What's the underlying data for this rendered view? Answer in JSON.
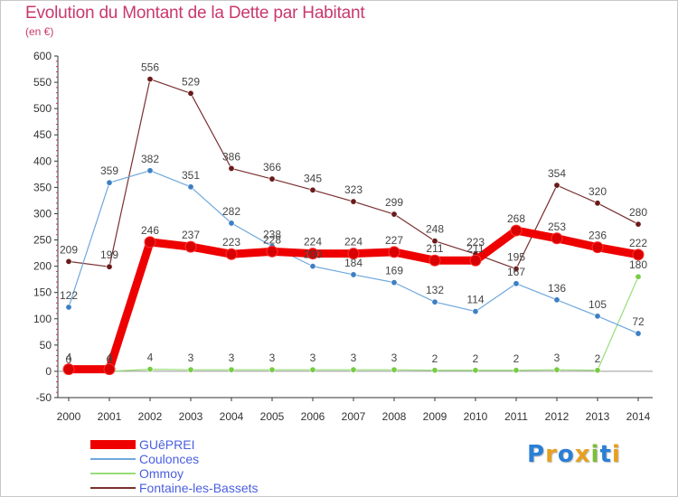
{
  "title": "Evolution du Montant de la Dette par Habitant",
  "subtitle": "(en €)",
  "logo": {
    "letters": [
      "P",
      "r",
      "o",
      "x",
      "i",
      "t",
      "i"
    ],
    "colors": [
      "#2a7fd6",
      "#e8a020",
      "#2a7fd6",
      "#e8a020",
      "#7bbf3a",
      "#2a7fd6",
      "#e8a020"
    ]
  },
  "chart_data": {
    "type": "line",
    "title": "Evolution du Montant de la Dette par Habitant",
    "ylabel": "(en €)",
    "ylim": [
      -50,
      600
    ],
    "yticks": [
      -50,
      0,
      50,
      100,
      150,
      200,
      250,
      300,
      350,
      400,
      450,
      500,
      550,
      600
    ],
    "x": [
      "2000",
      "2001",
      "2002",
      "2003",
      "2004",
      "2005",
      "2006",
      "2007",
      "2008",
      "2009",
      "2010",
      "2011",
      "2012",
      "2013",
      "2014"
    ],
    "grid": false,
    "legend_position": "bottom-left",
    "series": [
      {
        "name": "GUêPREI",
        "values": [
          4,
          4,
          246,
          237,
          223,
          228,
          224,
          224,
          227,
          211,
          211,
          268,
          253,
          236,
          222
        ],
        "color": "#ee0000",
        "marker": "#d80000"
      },
      {
        "name": "Coulonces",
        "values": [
          122,
          359,
          382,
          351,
          282,
          238,
          200,
          184,
          169,
          132,
          114,
          167,
          136,
          105,
          72
        ],
        "color": "#6fa8dc",
        "marker": "#3d7fc4"
      },
      {
        "name": "Ommoy",
        "values": [
          0,
          0,
          4,
          3,
          3,
          3,
          3,
          3,
          3,
          2,
          2,
          2,
          3,
          2,
          180
        ],
        "color": "#99dd77",
        "marker": "#77cc44"
      },
      {
        "name": "Fontaine-les-Bassets",
        "values": [
          209,
          199,
          556,
          529,
          386,
          366,
          345,
          323,
          299,
          248,
          223,
          195,
          354,
          320,
          280
        ],
        "color": "#7a3030",
        "marker": "#6a1a1a"
      }
    ]
  }
}
